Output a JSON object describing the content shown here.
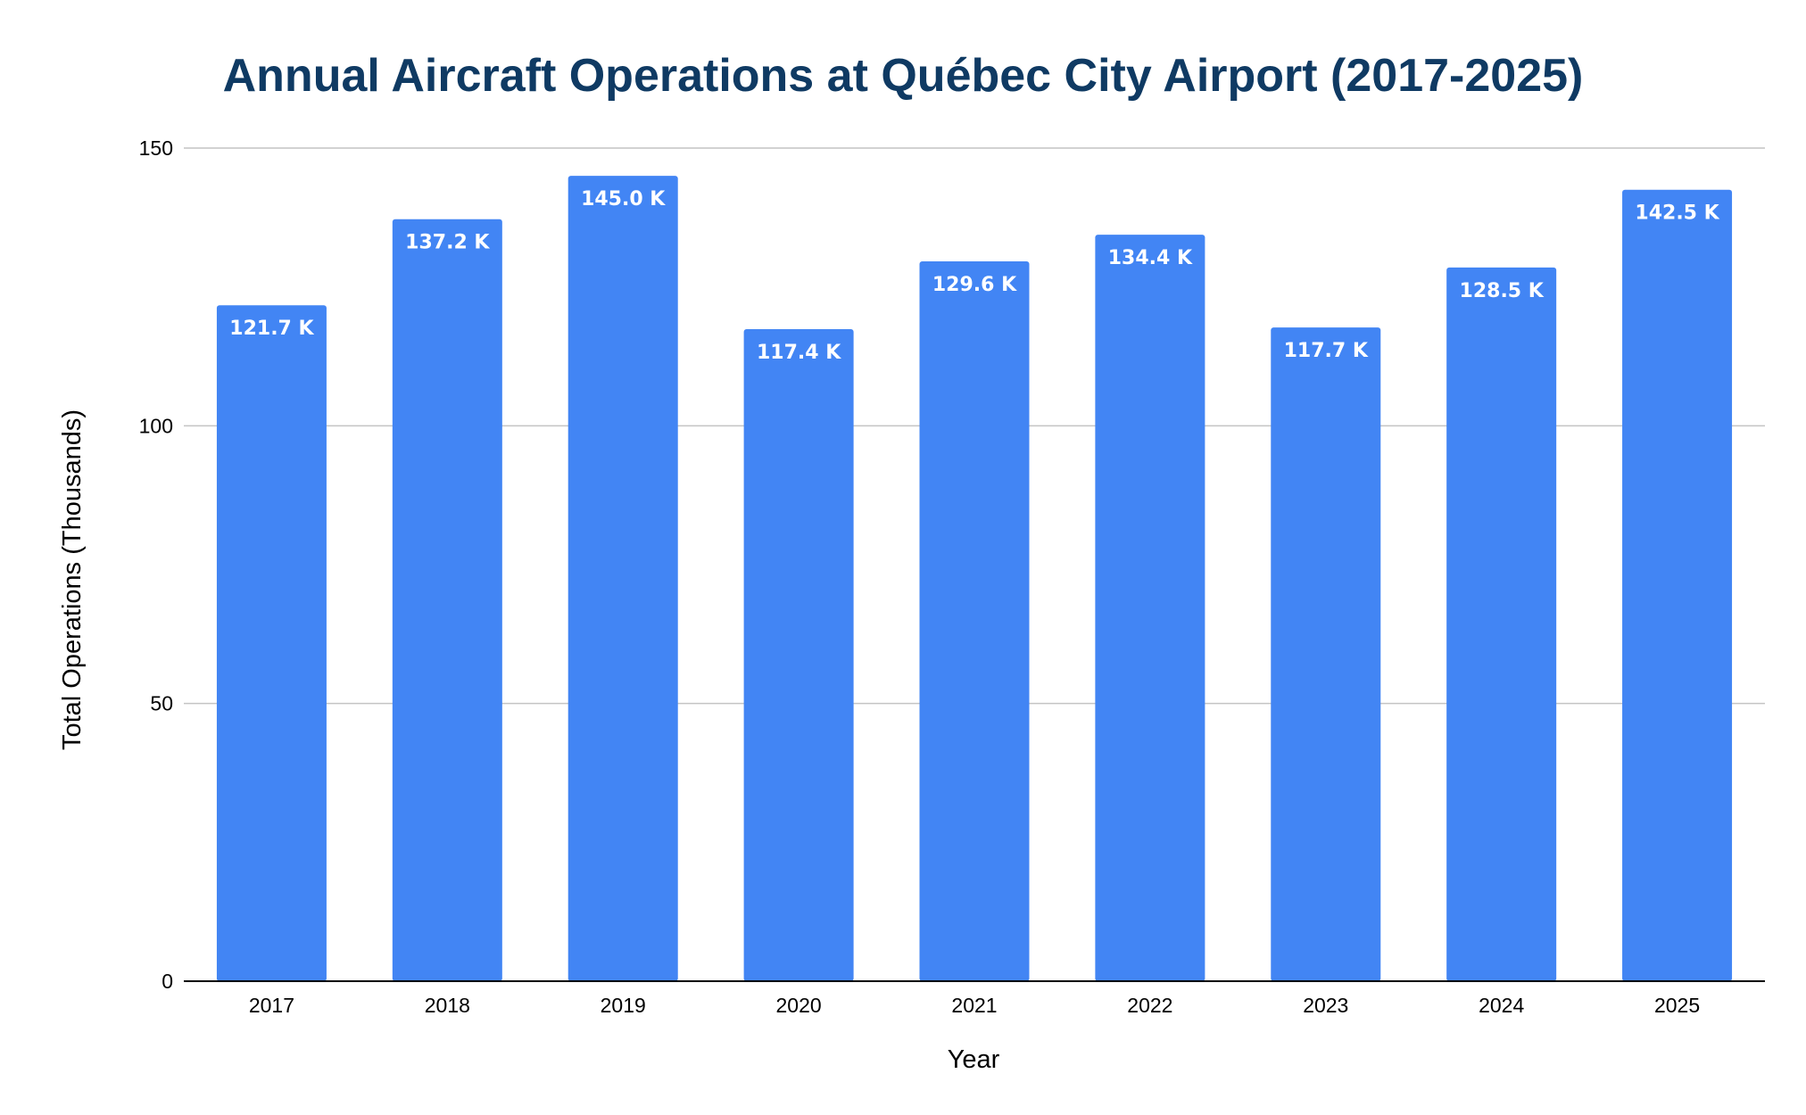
{
  "chart_data": {
    "type": "bar",
    "title": "Annual Aircraft Operations at Québec City Airport (2017-2025)",
    "xlabel": "Year",
    "ylabel": "Total Operations (Thousands)",
    "categories": [
      "2017",
      "2018",
      "2019",
      "2020",
      "2021",
      "2022",
      "2023",
      "2024",
      "2025"
    ],
    "values": [
      121.7,
      137.2,
      145.0,
      117.4,
      129.6,
      134.4,
      117.7,
      128.5,
      142.5
    ],
    "data_labels": [
      "121.7 K",
      "137.2 K",
      "145.0 K",
      "117.4 K",
      "129.6 K",
      "134.4 K",
      "117.7 K",
      "128.5 K",
      "142.5 K"
    ],
    "ylim": [
      0,
      150
    ],
    "yticks": [
      0,
      50,
      100,
      150
    ],
    "ytick_labels": [
      "0",
      "50",
      "100",
      "150"
    ],
    "grid": true,
    "legend": false,
    "colors": {
      "bar": "#4285f4",
      "title": "#0f3a63",
      "grid": "#c4c4c4"
    }
  }
}
